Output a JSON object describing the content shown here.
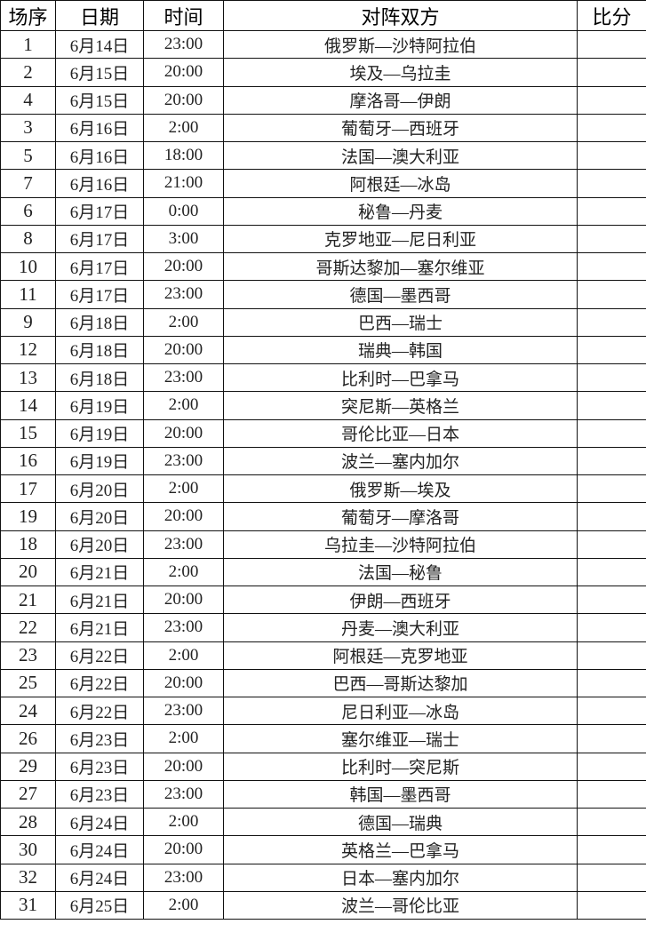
{
  "headers": {
    "seq": "场序",
    "date": "日期",
    "time": "时间",
    "match": "对阵双方",
    "score": "比分"
  },
  "rows": [
    {
      "seq": "1",
      "date": "6月14日",
      "time": "23:00",
      "match": "俄罗斯—沙特阿拉伯",
      "score": ""
    },
    {
      "seq": "2",
      "date": "6月15日",
      "time": "20:00",
      "match": "埃及—乌拉圭",
      "score": ""
    },
    {
      "seq": "4",
      "date": "6月15日",
      "time": "20:00",
      "match": "摩洛哥—伊朗",
      "score": ""
    },
    {
      "seq": "3",
      "date": "6月16日",
      "time": "2:00",
      "match": "葡萄牙—西班牙",
      "score": ""
    },
    {
      "seq": "5",
      "date": "6月16日",
      "time": "18:00",
      "match": "法国—澳大利亚",
      "score": ""
    },
    {
      "seq": "7",
      "date": "6月16日",
      "time": "21:00",
      "match": "阿根廷—冰岛",
      "score": ""
    },
    {
      "seq": "6",
      "date": "6月17日",
      "time": "0:00",
      "match": "秘鲁—丹麦",
      "score": ""
    },
    {
      "seq": "8",
      "date": "6月17日",
      "time": "3:00",
      "match": "克罗地亚—尼日利亚",
      "score": ""
    },
    {
      "seq": "10",
      "date": "6月17日",
      "time": "20:00",
      "match": "哥斯达黎加—塞尔维亚",
      "score": ""
    },
    {
      "seq": "11",
      "date": "6月17日",
      "time": "23:00",
      "match": "德国—墨西哥",
      "score": ""
    },
    {
      "seq": "9",
      "date": "6月18日",
      "time": "2:00",
      "match": "巴西—瑞士",
      "score": ""
    },
    {
      "seq": "12",
      "date": "6月18日",
      "time": "20:00",
      "match": "瑞典—韩国",
      "score": ""
    },
    {
      "seq": "13",
      "date": "6月18日",
      "time": "23:00",
      "match": "比利时—巴拿马",
      "score": ""
    },
    {
      "seq": "14",
      "date": "6月19日",
      "time": "2:00",
      "match": "突尼斯—英格兰",
      "score": ""
    },
    {
      "seq": "15",
      "date": "6月19日",
      "time": "20:00",
      "match": "哥伦比亚—日本",
      "score": ""
    },
    {
      "seq": "16",
      "date": "6月19日",
      "time": "23:00",
      "match": "波兰—塞内加尔",
      "score": ""
    },
    {
      "seq": "17",
      "date": "6月20日",
      "time": "2:00",
      "match": "俄罗斯—埃及",
      "score": ""
    },
    {
      "seq": "19",
      "date": "6月20日",
      "time": "20:00",
      "match": "葡萄牙—摩洛哥",
      "score": ""
    },
    {
      "seq": "18",
      "date": "6月20日",
      "time": "23:00",
      "match": "乌拉圭—沙特阿拉伯",
      "score": ""
    },
    {
      "seq": "20",
      "date": "6月21日",
      "time": "2:00",
      "match": "法国—秘鲁",
      "score": ""
    },
    {
      "seq": "21",
      "date": "6月21日",
      "time": "20:00",
      "match": "伊朗—西班牙",
      "score": ""
    },
    {
      "seq": "22",
      "date": "6月21日",
      "time": "23:00",
      "match": "丹麦—澳大利亚",
      "score": ""
    },
    {
      "seq": "23",
      "date": "6月22日",
      "time": "2:00",
      "match": "阿根廷—克罗地亚",
      "score": ""
    },
    {
      "seq": "25",
      "date": "6月22日",
      "time": "20:00",
      "match": "巴西—哥斯达黎加",
      "score": ""
    },
    {
      "seq": "24",
      "date": "6月22日",
      "time": "23:00",
      "match": "尼日利亚—冰岛",
      "score": ""
    },
    {
      "seq": "26",
      "date": "6月23日",
      "time": "2:00",
      "match": "塞尔维亚—瑞士",
      "score": ""
    },
    {
      "seq": "29",
      "date": "6月23日",
      "time": "20:00",
      "match": "比利时—突尼斯",
      "score": ""
    },
    {
      "seq": "27",
      "date": "6月23日",
      "time": "23:00",
      "match": "韩国—墨西哥",
      "score": ""
    },
    {
      "seq": "28",
      "date": "6月24日",
      "time": "2:00",
      "match": "德国—瑞典",
      "score": ""
    },
    {
      "seq": "30",
      "date": "6月24日",
      "time": "20:00",
      "match": "英格兰—巴拿马",
      "score": ""
    },
    {
      "seq": "32",
      "date": "6月24日",
      "time": "23:00",
      "match": "日本—塞内加尔",
      "score": ""
    },
    {
      "seq": "31",
      "date": "6月25日",
      "time": "2:00",
      "match": "波兰—哥伦比亚",
      "score": ""
    }
  ]
}
